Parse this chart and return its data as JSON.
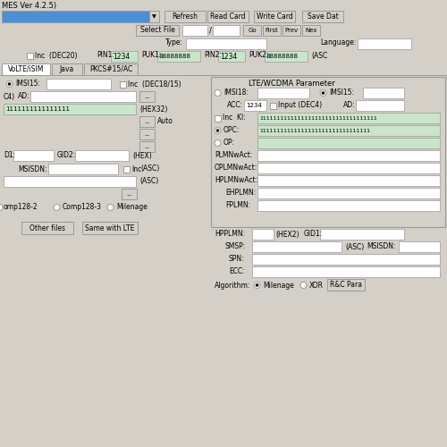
{
  "title": "MES Ver 4.2.5)",
  "bg_color": "#d4d0c8",
  "white": "#ffffff",
  "green_field": "#c8e6c9",
  "blue_bar": "#4a90d9",
  "dark_border": "#999999",
  "black": "#000000",
  "toolbar_buttons": [
    "Refresh",
    "Read Card",
    "Write Card",
    "Save Dat"
  ],
  "nav_buttons": [
    "Go",
    "First",
    "Prev",
    "Nex"
  ],
  "tabs": [
    "VoLTE/iSIM",
    "Java",
    "PKCS#15/AC"
  ],
  "lte_label": "LTE/WCDMA Parameter",
  "ki_ones": "1111111111111111",
  "opc_ones": "11111111111111111111111111111111",
  "ki_ones_long": "1111111111111111111111111111111111"
}
